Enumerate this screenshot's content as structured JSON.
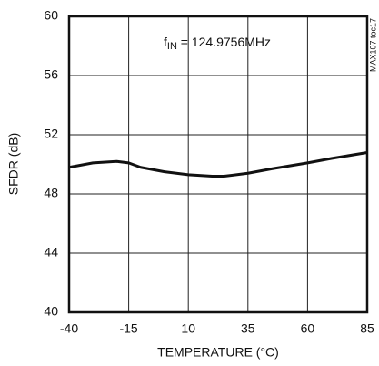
{
  "chart_data": {
    "type": "line",
    "x_label": "TEMPERATURE (°C)",
    "y_label": "SFDR (dB)",
    "annotation_parts": [
      "f",
      "IN",
      " = 124.9756MHz"
    ],
    "figure_id": "MAX107 toc17",
    "x": [
      -40,
      -30,
      -20,
      -15,
      -10,
      0,
      10,
      20,
      25,
      35,
      45,
      60,
      70,
      85
    ],
    "series": [
      {
        "color": "#111111",
        "values": [
          49.8,
          50.1,
          50.2,
          50.1,
          49.8,
          49.5,
          49.3,
          49.2,
          49.2,
          49.4,
          49.7,
          50.1,
          50.4,
          50.8
        ]
      }
    ],
    "xlim": [
      -40,
      85
    ],
    "xticks": [
      -40,
      -15,
      10,
      35,
      60,
      85
    ],
    "ylim": [
      40,
      60
    ],
    "yticks": [
      40,
      44,
      48,
      52,
      56,
      60
    ],
    "grid": true
  }
}
